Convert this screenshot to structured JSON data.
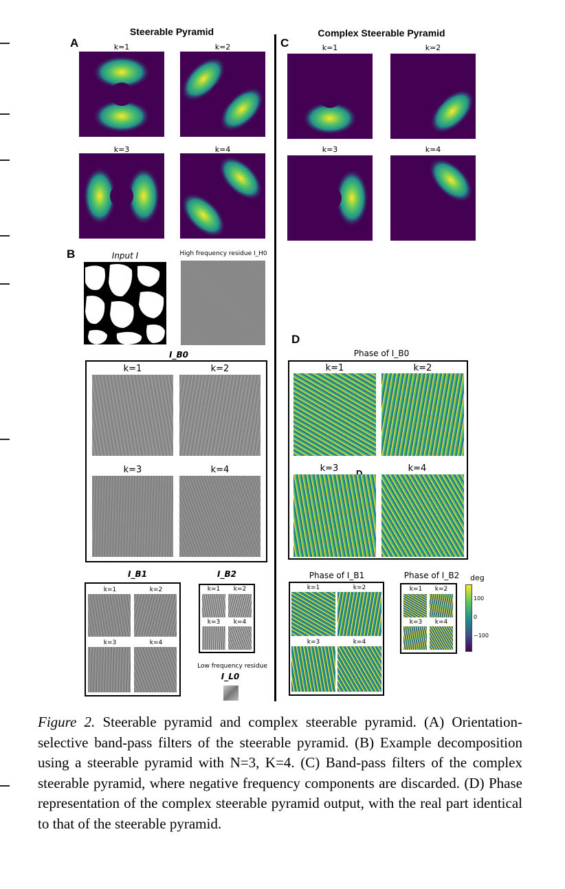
{
  "panel_a": {
    "letter": "A",
    "title": "Steerable Pyramid",
    "k_labels": [
      "k=1",
      "k=2",
      "k=3",
      "k=4"
    ]
  },
  "panel_c": {
    "letter": "C",
    "title": "Complex Steerable Pyramid",
    "k_labels": [
      "k=1",
      "k=2",
      "k=3",
      "k=4"
    ]
  },
  "panel_b": {
    "letter": "B",
    "input_label": "Input I",
    "high_freq_label": "High frequency residue I_H0",
    "ib0_label": "I_B0",
    "ib0_k_labels": [
      "k=1",
      "k=2",
      "k=3",
      "k=4"
    ],
    "ib1_label": "I_B1",
    "ib1_k_labels": [
      "k=1",
      "k=2",
      "k=3",
      "k=4"
    ],
    "ib2_label": "I_B2",
    "ib2_k_labels": [
      "k=1",
      "k=2",
      "k=3",
      "k=4"
    ],
    "low_freq_label": "Low frequency residue",
    "low_freq_symbol": "I_L0"
  },
  "panel_d": {
    "letter": "D",
    "phase_b0_label": "Phase of I_B0",
    "b0_k_labels": [
      "k=1",
      "k=2",
      "k=3",
      "k=4"
    ],
    "stray_mark": "D",
    "phase_b1_label": "Phase of I_B1",
    "b1_k_labels": [
      "k=1",
      "k=2",
      "k=3",
      "k=4"
    ],
    "phase_b2_label": "Phase of I_B2",
    "b2_k_labels": [
      "k=1",
      "k=2",
      "k=3",
      "k=4"
    ],
    "colorbar": {
      "label": "deg",
      "ticks": [
        "100",
        "0",
        "−100"
      ],
      "colors": [
        "#fde725",
        "#5ec962",
        "#21918c",
        "#3b528b",
        "#440154"
      ]
    }
  },
  "caption": {
    "figure_label": "Figure 2.",
    "text": " Steerable pyramid and complex steerable pyramid. (A) Orientation-selective band-pass filters of the steerable pyramid. (B) Example decomposition using a steerable pyramid with N=3, K=4.  (C) Band-pass filters of the complex steerable pyramid, where negative frequency components are discarded. (D) Phase representation of the complex steerable pyramid output, with the real part identical to that of the steerable pyramid."
  }
}
